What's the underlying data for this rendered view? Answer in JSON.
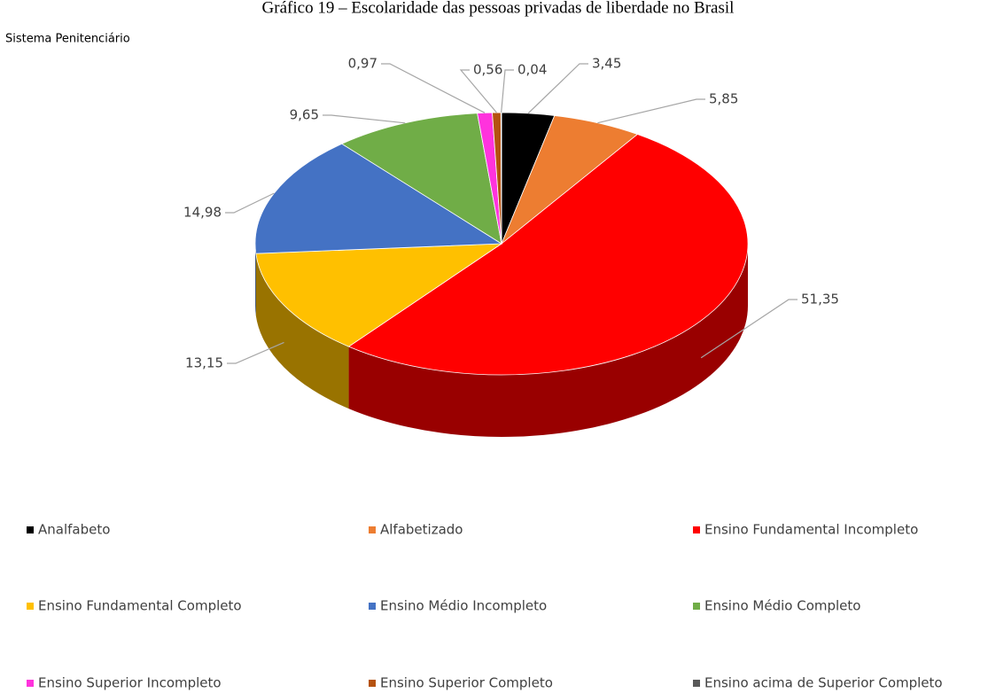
{
  "chart_data": {
    "type": "pie",
    "title": "Gráfico 19 – Escolaridade das pessoas privadas de liberdade no Brasil",
    "subtitle": "Sistema Penitenciário",
    "categories": [
      "Analfabeto",
      "Alfabetizado",
      "Ensino Fundamental Incompleto",
      "Ensino Fundamental Completo",
      "Ensino Médio Incompleto",
      "Ensino Médio Completo",
      "Ensino Superior Incompleto",
      "Ensino Superior Completo",
      "Ensino acima de Superior Completo"
    ],
    "values": [
      3.45,
      5.85,
      51.35,
      13.15,
      14.98,
      9.65,
      0.97,
      0.56,
      0.04
    ],
    "value_labels": [
      "3,45",
      "5,85",
      "51,35",
      "13,15",
      "14,98",
      "9,65",
      "0,97",
      "0,56",
      "0,04"
    ],
    "colors": [
      "#000000",
      "#ed7d31",
      "#ff0000",
      "#ffc000",
      "#4472c4",
      "#70ad47",
      "#ff33dd",
      "#b5520f",
      "#595959"
    ],
    "legend": "bottom"
  }
}
